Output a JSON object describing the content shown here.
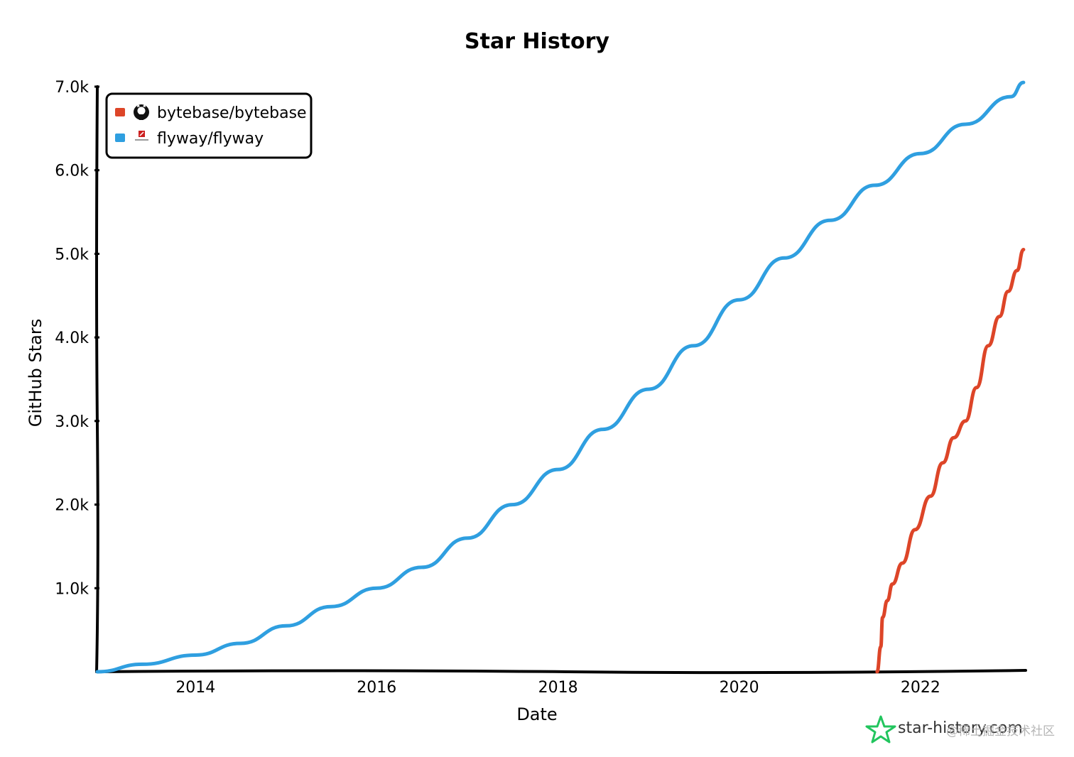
{
  "chart_data": {
    "type": "line",
    "title": "Star History",
    "xlabel": "Date",
    "ylabel": "GitHub Stars",
    "x_range": [
      "2012-12-01",
      "2023-03-01"
    ],
    "x_ticks": [
      "2014",
      "2016",
      "2018",
      "2020",
      "2022"
    ],
    "y_range": [
      0,
      7000
    ],
    "y_ticks": [
      "1.0k",
      "2.0k",
      "3.0k",
      "4.0k",
      "5.0k",
      "6.0k",
      "7.0k"
    ],
    "legend_position": "top-left",
    "series": [
      {
        "name": "bytebase/bytebase",
        "color": "#dd4528",
        "icon": "github-icon",
        "points": [
          [
            "2021-07-10",
            0
          ],
          [
            "2021-07-25",
            300
          ],
          [
            "2021-08-01",
            650
          ],
          [
            "2021-08-20",
            850
          ],
          [
            "2021-09-10",
            1050
          ],
          [
            "2021-10-20",
            1300
          ],
          [
            "2021-12-10",
            1700
          ],
          [
            "2022-02-10",
            2100
          ],
          [
            "2022-04-01",
            2500
          ],
          [
            "2022-05-15",
            2800
          ],
          [
            "2022-07-01",
            3000
          ],
          [
            "2022-08-15",
            3400
          ],
          [
            "2022-10-01",
            3900
          ],
          [
            "2022-11-15",
            4250
          ],
          [
            "2022-12-20",
            4550
          ],
          [
            "2023-01-25",
            4800
          ],
          [
            "2023-02-20",
            5050
          ]
        ]
      },
      {
        "name": "flyway/flyway",
        "color": "#2f9fe0",
        "icon": "flyway-logo-icon",
        "points": [
          [
            "2012-12-01",
            0
          ],
          [
            "2013-06-01",
            90
          ],
          [
            "2014-01-01",
            200
          ],
          [
            "2014-07-01",
            340
          ],
          [
            "2015-01-01",
            550
          ],
          [
            "2015-07-01",
            780
          ],
          [
            "2016-01-01",
            1000
          ],
          [
            "2016-07-01",
            1250
          ],
          [
            "2017-01-01",
            1600
          ],
          [
            "2017-07-01",
            2000
          ],
          [
            "2018-01-01",
            2420
          ],
          [
            "2018-07-01",
            2900
          ],
          [
            "2019-01-01",
            3380
          ],
          [
            "2019-07-01",
            3900
          ],
          [
            "2020-01-01",
            4450
          ],
          [
            "2020-07-01",
            4950
          ],
          [
            "2021-01-01",
            5400
          ],
          [
            "2021-07-01",
            5820
          ],
          [
            "2022-01-01",
            6200
          ],
          [
            "2022-07-01",
            6550
          ],
          [
            "2023-01-01",
            6880
          ],
          [
            "2023-02-20",
            7050
          ]
        ]
      }
    ]
  },
  "brand": {
    "text": "star-history.com",
    "icon": "star-history-logo-icon"
  },
  "watermark": {
    "text": "@稀土掘金技术社区"
  }
}
